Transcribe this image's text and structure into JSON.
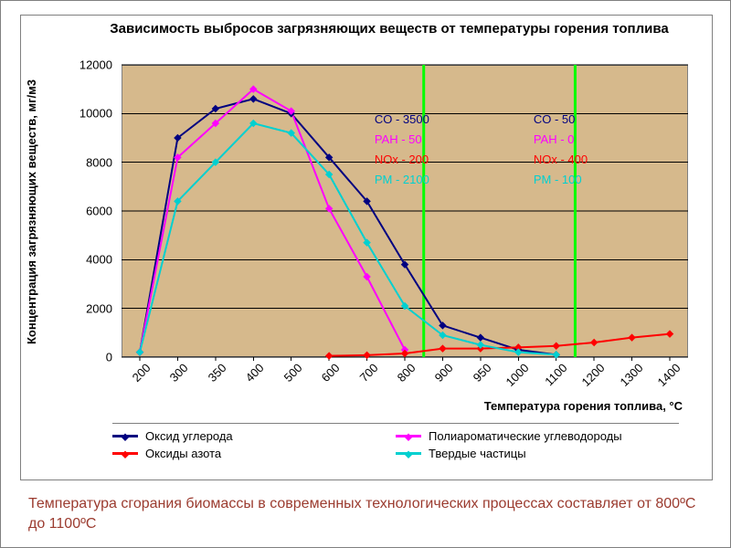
{
  "chart": {
    "type": "line",
    "title": "Зависимость выбросов загрязняющих веществ от температуры горения топлива",
    "y_axis_title": "Концентрация загрязняющих веществ, мг/м3",
    "x_axis_title": "Температура горения топлива, °С",
    "x_categories": [
      "200",
      "300",
      "350",
      "400",
      "500",
      "600",
      "700",
      "800",
      "900",
      "950",
      "1000",
      "1100",
      "1200",
      "1300",
      "1400"
    ],
    "y_ticks": [
      0,
      2000,
      4000,
      6000,
      8000,
      10000,
      12000
    ],
    "ylim": [
      0,
      12000
    ],
    "plot_bg_color": "#d6b98c",
    "grid_color": "#000000",
    "series": [
      {
        "name": "Оксид углерода",
        "color": "#000080",
        "values": [
          200,
          9000,
          10200,
          10600,
          10000,
          8200,
          6400,
          3800,
          1300,
          800,
          300,
          100,
          null,
          null,
          null
        ]
      },
      {
        "name": "Полиароматические углеводороды",
        "color": "#ff00ff",
        "values": [
          200,
          8200,
          9600,
          11000,
          10100,
          6100,
          3300,
          300,
          null,
          null,
          null,
          null,
          null,
          null,
          null
        ]
      },
      {
        "name": "Оксиды азота",
        "color": "#ff0000",
        "values": [
          null,
          null,
          null,
          null,
          null,
          50,
          80,
          150,
          350,
          350,
          400,
          460,
          600,
          800,
          950
        ]
      },
      {
        "name": "Твердые частицы",
        "color": "#00d0d0",
        "values": [
          200,
          6400,
          8000,
          9600,
          9200,
          7500,
          4700,
          2100,
          900,
          500,
          200,
          100,
          null,
          null,
          null
        ]
      }
    ],
    "vlines": [
      {
        "x_index": 7.5,
        "color": "#00ff00"
      },
      {
        "x_index": 11.5,
        "color": "#00ff00"
      }
    ],
    "annotations": [
      {
        "col_x_index": 6.2,
        "lines": [
          {
            "label": "CO",
            "value": "3500",
            "color": "#000080"
          },
          {
            "label": "PAH",
            "value": "50",
            "color": "#ff00ff"
          },
          {
            "label": "NOx",
            "value": "200",
            "color": "#ff0000"
          },
          {
            "label": "PM",
            "value": "2100",
            "color": "#00d0d0"
          }
        ]
      },
      {
        "col_x_index": 10.4,
        "lines": [
          {
            "label": "CO",
            "value": "50",
            "color": "#000080"
          },
          {
            "label": "PAH",
            "value": "0",
            "color": "#ff00ff"
          },
          {
            "label": "NOx",
            "value": "400",
            "color": "#ff0000"
          },
          {
            "label": "PM",
            "value": "100",
            "color": "#00d0d0"
          }
        ]
      }
    ],
    "legend": [
      {
        "label": "Оксид углерода",
        "color": "#000080"
      },
      {
        "label": "Полиароматические углеводороды",
        "color": "#ff00ff"
      },
      {
        "label": "Оксиды азота",
        "color": "#ff0000"
      },
      {
        "label": "Твердые частицы",
        "color": "#00d0d0"
      }
    ]
  },
  "caption": "Температура сгорания биомассы в современных технологических процессах составляет от 800ºС до 1100ºС",
  "caption_color": "#9b3b2f"
}
